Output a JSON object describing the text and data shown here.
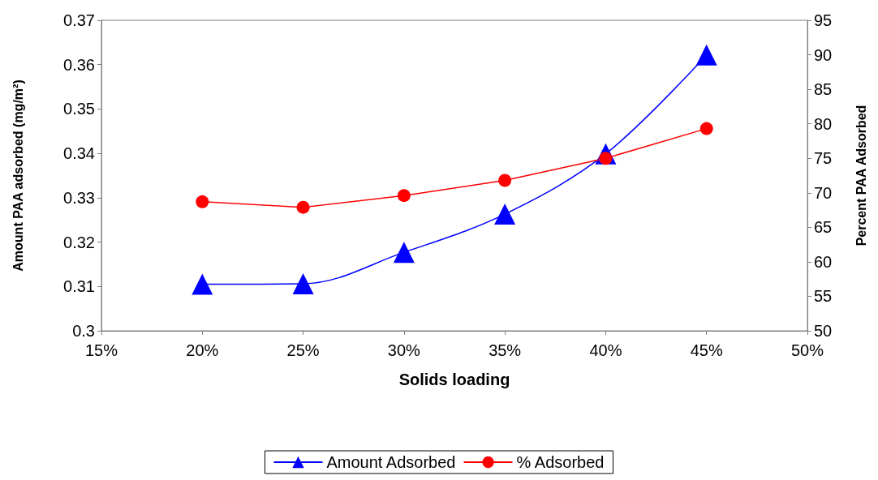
{
  "chart_data": {
    "type": "line",
    "xlabel": "Solids loading",
    "ylabel": "Amount PAA adsorbed (mg/m²)",
    "y2label": "Percent PAA Adsorbed",
    "x": [
      20,
      25,
      30,
      35,
      40,
      45
    ],
    "series": [
      {
        "name": "Amount Adsorbed",
        "color": "#0000ff",
        "marker": "triangle",
        "values": [
          0.3105,
          0.3106,
          0.3177,
          0.3263,
          0.3399,
          0.3622
        ]
      },
      {
        "name": "% Adsorbed",
        "color": "#ff0000",
        "marker": "circle",
        "axis": "y2",
        "values": [
          68.7,
          67.9,
          69.6,
          71.8,
          75,
          79.3
        ]
      }
    ],
    "xlim": [
      15,
      50
    ],
    "xticks": [
      {
        "value": 15,
        "label": "15%"
      },
      {
        "value": 20,
        "label": "20%"
      },
      {
        "value": 25,
        "label": "25%"
      },
      {
        "value": 30,
        "label": "30%"
      },
      {
        "value": 35,
        "label": "35%"
      },
      {
        "value": 40,
        "label": "40%"
      },
      {
        "value": 45,
        "label": "45%"
      },
      {
        "value": 50,
        "label": "50%"
      }
    ],
    "ylim": [
      0.3,
      0.37
    ],
    "yticks": [
      0.3,
      0.31,
      0.32,
      0.33,
      0.34,
      0.35,
      0.36,
      0.37
    ],
    "y2lim": [
      50,
      95
    ],
    "y2ticks": [
      50,
      55,
      60,
      65,
      70,
      75,
      80,
      85,
      90,
      95
    ],
    "grid": false,
    "legend": "bottom"
  }
}
